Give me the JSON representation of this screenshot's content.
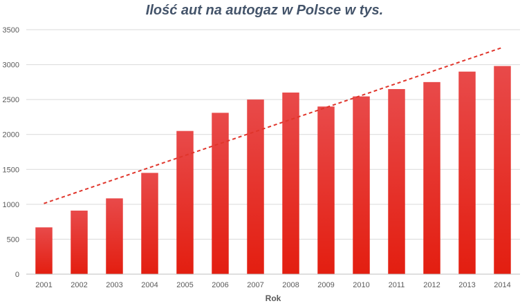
{
  "chart_data": {
    "type": "bar",
    "title": "Ilość aut na autogaz w Polsce w tys.",
    "xlabel": "Rok",
    "ylabel": "",
    "categories": [
      "2001",
      "2002",
      "2003",
      "2004",
      "2005",
      "2006",
      "2007",
      "2008",
      "2009",
      "2010",
      "2011",
      "2012",
      "2013",
      "2014"
    ],
    "values": [
      670,
      910,
      1085,
      1450,
      2050,
      2310,
      2500,
      2600,
      2400,
      2545,
      2650,
      2750,
      2900,
      2980
    ],
    "ylim": [
      0,
      3500
    ],
    "yticks": [
      0,
      500,
      1000,
      1500,
      2000,
      2500,
      3000,
      3500
    ],
    "grid": true,
    "legend": "none",
    "trendline": {
      "type": "linear",
      "style": "dashed",
      "color": "#e0352b"
    },
    "colors": {
      "bar_top": "#e84a4a",
      "bar_bottom": "#e31e10",
      "title": "#44546a",
      "grid": "#d9d9d9"
    }
  }
}
